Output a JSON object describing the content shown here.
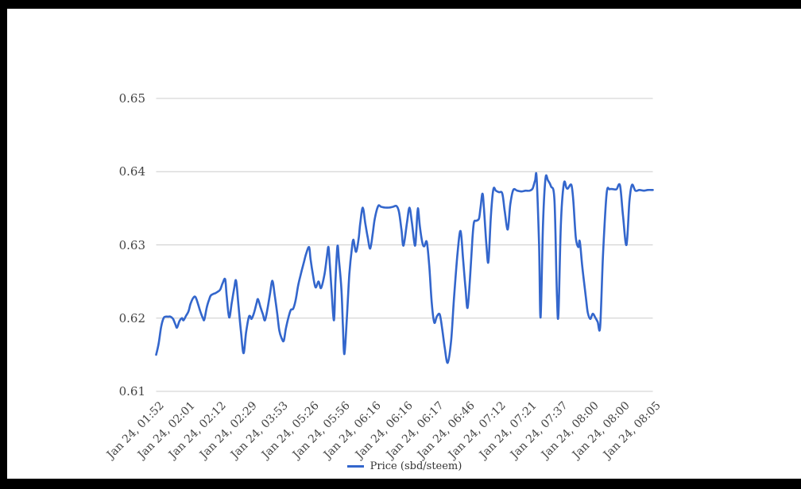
{
  "frame": {
    "color": "#000000"
  },
  "chart_data": {
    "type": "line",
    "title": "",
    "xlabel": "",
    "ylabel": "",
    "grid": true,
    "gridline_color": "#cccccc",
    "axis_label_color": "#444444",
    "legend_position": "bottom",
    "ylim": [
      0.61,
      0.655
    ],
    "y_ticks": [
      0.61,
      0.62,
      0.63,
      0.64,
      0.65
    ],
    "y_tick_labels": [
      "0.61",
      "0.62",
      "0.63",
      "0.64",
      "0.65"
    ],
    "x_tick_labels": [
      "Jan 24, 01:52",
      "Jan 24, 02:01",
      "Jan 24, 02:12",
      "Jan 24, 02:29",
      "Jan 24, 03:53",
      "Jan 24, 05:26",
      "Jan 24, 05:56",
      "Jan 24, 06:16",
      "Jan 24, 06:16",
      "Jan 24, 06:17",
      "Jan 24, 06:46",
      "Jan 24, 07:12",
      "Jan 24, 07:21",
      "Jan 24, 07:37",
      "Jan 24, 08:00",
      "Jan 24, 08:00",
      "Jan 24, 08:05"
    ],
    "legend": {
      "label": "Price (sbd/steem)",
      "swatch_color": "#3366cc",
      "text_color": "#333333"
    },
    "series": [
      {
        "name": "Price (sbd/steem)",
        "color": "#3366cc",
        "x_unit": "fraction_of_time_axis",
        "points": [
          [
            0,
            0.615
          ],
          [
            0.005,
            0.6165
          ],
          [
            0.01,
            0.6188
          ],
          [
            0.015,
            0.62
          ],
          [
            0.019,
            0.6202
          ],
          [
            0.024,
            0.6202
          ],
          [
            0.029,
            0.6202
          ],
          [
            0.034,
            0.6199
          ],
          [
            0.039,
            0.6191
          ],
          [
            0.042,
            0.6187
          ],
          [
            0.047,
            0.6196
          ],
          [
            0.052,
            0.62
          ],
          [
            0.055,
            0.6197
          ],
          [
            0.06,
            0.6203
          ],
          [
            0.065,
            0.6209
          ],
          [
            0.069,
            0.6219
          ],
          [
            0.074,
            0.6227
          ],
          [
            0.079,
            0.6229
          ],
          [
            0.084,
            0.622
          ],
          [
            0.089,
            0.6209
          ],
          [
            0.094,
            0.62
          ],
          [
            0.097,
            0.6198
          ],
          [
            0.102,
            0.6215
          ],
          [
            0.107,
            0.6226
          ],
          [
            0.11,
            0.6231
          ],
          [
            0.115,
            0.6233
          ],
          [
            0.119,
            0.6234
          ],
          [
            0.124,
            0.6236
          ],
          [
            0.129,
            0.6239
          ],
          [
            0.134,
            0.6248
          ],
          [
            0.139,
            0.6253
          ],
          [
            0.142,
            0.623
          ],
          [
            0.147,
            0.6201
          ],
          [
            0.152,
            0.622
          ],
          [
            0.157,
            0.624
          ],
          [
            0.161,
            0.6251
          ],
          [
            0.166,
            0.6215
          ],
          [
            0.171,
            0.618
          ],
          [
            0.176,
            0.6152
          ],
          [
            0.181,
            0.618
          ],
          [
            0.186,
            0.62
          ],
          [
            0.189,
            0.6203
          ],
          [
            0.192,
            0.6199
          ],
          [
            0.197,
            0.6207
          ],
          [
            0.202,
            0.622
          ],
          [
            0.205,
            0.6226
          ],
          [
            0.21,
            0.6215
          ],
          [
            0.215,
            0.6205
          ],
          [
            0.219,
            0.6197
          ],
          [
            0.224,
            0.6212
          ],
          [
            0.229,
            0.6232
          ],
          [
            0.234,
            0.6251
          ],
          [
            0.239,
            0.623
          ],
          [
            0.244,
            0.6205
          ],
          [
            0.248,
            0.6183
          ],
          [
            0.253,
            0.6172
          ],
          [
            0.257,
            0.6169
          ],
          [
            0.261,
            0.6185
          ],
          [
            0.266,
            0.62
          ],
          [
            0.271,
            0.6211
          ],
          [
            0.276,
            0.6213
          ],
          [
            0.281,
            0.6225
          ],
          [
            0.286,
            0.6245
          ],
          [
            0.292,
            0.6262
          ],
          [
            0.297,
            0.6275
          ],
          [
            0.302,
            0.6288
          ],
          [
            0.308,
            0.6297
          ],
          [
            0.311,
            0.628
          ],
          [
            0.316,
            0.6258
          ],
          [
            0.321,
            0.6242
          ],
          [
            0.327,
            0.625
          ],
          [
            0.332,
            0.6241
          ],
          [
            0.339,
            0.626
          ],
          [
            0.344,
            0.6285
          ],
          [
            0.347,
            0.6297
          ],
          [
            0.35,
            0.627
          ],
          [
            0.353,
            0.624
          ],
          [
            0.358,
            0.6197
          ],
          [
            0.361,
            0.625
          ],
          [
            0.365,
            0.6298
          ],
          [
            0.368,
            0.628
          ],
          [
            0.373,
            0.624
          ],
          [
            0.376,
            0.619
          ],
          [
            0.379,
            0.6151
          ],
          [
            0.384,
            0.62
          ],
          [
            0.389,
            0.626
          ],
          [
            0.394,
            0.6295
          ],
          [
            0.397,
            0.6307
          ],
          [
            0.4,
            0.6297
          ],
          [
            0.403,
            0.6291
          ],
          [
            0.408,
            0.631
          ],
          [
            0.411,
            0.633
          ],
          [
            0.416,
            0.6351
          ],
          [
            0.421,
            0.633
          ],
          [
            0.426,
            0.631
          ],
          [
            0.431,
            0.6295
          ],
          [
            0.436,
            0.6315
          ],
          [
            0.44,
            0.6335
          ],
          [
            0.447,
            0.6353
          ],
          [
            0.453,
            0.6352
          ],
          [
            0.461,
            0.6351
          ],
          [
            0.469,
            0.6351
          ],
          [
            0.477,
            0.6352
          ],
          [
            0.484,
            0.6353
          ],
          [
            0.489,
            0.6345
          ],
          [
            0.494,
            0.632
          ],
          [
            0.498,
            0.6299
          ],
          [
            0.505,
            0.633
          ],
          [
            0.51,
            0.6351
          ],
          [
            0.515,
            0.633
          ],
          [
            0.521,
            0.6299
          ],
          [
            0.524,
            0.632
          ],
          [
            0.527,
            0.635
          ],
          [
            0.531,
            0.6325
          ],
          [
            0.536,
            0.6303
          ],
          [
            0.54,
            0.6298
          ],
          [
            0.545,
            0.6304
          ],
          [
            0.55,
            0.627
          ],
          [
            0.555,
            0.622
          ],
          [
            0.56,
            0.6194
          ],
          [
            0.565,
            0.6202
          ],
          [
            0.571,
            0.6205
          ],
          [
            0.576,
            0.6185
          ],
          [
            0.581,
            0.616
          ],
          [
            0.587,
            0.6139
          ],
          [
            0.594,
            0.617
          ],
          [
            0.6,
            0.623
          ],
          [
            0.607,
            0.629
          ],
          [
            0.613,
            0.6319
          ],
          [
            0.618,
            0.628
          ],
          [
            0.623,
            0.624
          ],
          [
            0.627,
            0.6214
          ],
          [
            0.632,
            0.6255
          ],
          [
            0.637,
            0.631
          ],
          [
            0.64,
            0.6331
          ],
          [
            0.645,
            0.6333
          ],
          [
            0.65,
            0.6336
          ],
          [
            0.653,
            0.635
          ],
          [
            0.657,
            0.637
          ],
          [
            0.66,
            0.635
          ],
          [
            0.665,
            0.63
          ],
          [
            0.669,
            0.6277
          ],
          [
            0.674,
            0.634
          ],
          [
            0.679,
            0.6376
          ],
          [
            0.684,
            0.6374
          ],
          [
            0.69,
            0.6372
          ],
          [
            0.697,
            0.637
          ],
          [
            0.702,
            0.6345
          ],
          [
            0.708,
            0.6321
          ],
          [
            0.713,
            0.6355
          ],
          [
            0.719,
            0.6375
          ],
          [
            0.727,
            0.6374
          ],
          [
            0.736,
            0.6373
          ],
          [
            0.744,
            0.6374
          ],
          [
            0.752,
            0.6374
          ],
          [
            0.758,
            0.6377
          ],
          [
            0.763,
            0.6388
          ],
          [
            0.766,
            0.6392
          ],
          [
            0.771,
            0.63
          ],
          [
            0.774,
            0.6201
          ],
          [
            0.779,
            0.633
          ],
          [
            0.784,
            0.6391
          ],
          [
            0.789,
            0.6388
          ],
          [
            0.795,
            0.638
          ],
          [
            0.802,
            0.636
          ],
          [
            0.807,
            0.623
          ],
          [
            0.81,
            0.6206
          ],
          [
            0.815,
            0.633
          ],
          [
            0.821,
            0.6384
          ],
          [
            0.826,
            0.6378
          ],
          [
            0.829,
            0.6377
          ],
          [
            0.836,
            0.6382
          ],
          [
            0.84,
            0.636
          ],
          [
            0.845,
            0.631
          ],
          [
            0.85,
            0.6297
          ],
          [
            0.853,
            0.6305
          ],
          [
            0.858,
            0.627
          ],
          [
            0.865,
            0.623
          ],
          [
            0.869,
            0.6208
          ],
          [
            0.874,
            0.6199
          ],
          [
            0.879,
            0.6206
          ],
          [
            0.884,
            0.6201
          ],
          [
            0.889,
            0.6195
          ],
          [
            0.894,
            0.6189
          ],
          [
            0.9,
            0.629
          ],
          [
            0.907,
            0.637
          ],
          [
            0.913,
            0.6376
          ],
          [
            0.921,
            0.6376
          ],
          [
            0.927,
            0.6376
          ],
          [
            0.934,
            0.6381
          ],
          [
            0.94,
            0.634
          ],
          [
            0.947,
            0.63
          ],
          [
            0.953,
            0.636
          ],
          [
            0.958,
            0.6382
          ],
          [
            0.965,
            0.6374
          ],
          [
            0.973,
            0.6375
          ],
          [
            0.982,
            0.6374
          ],
          [
            0.99,
            0.6375
          ],
          [
            1,
            0.6375
          ]
        ]
      }
    ]
  }
}
